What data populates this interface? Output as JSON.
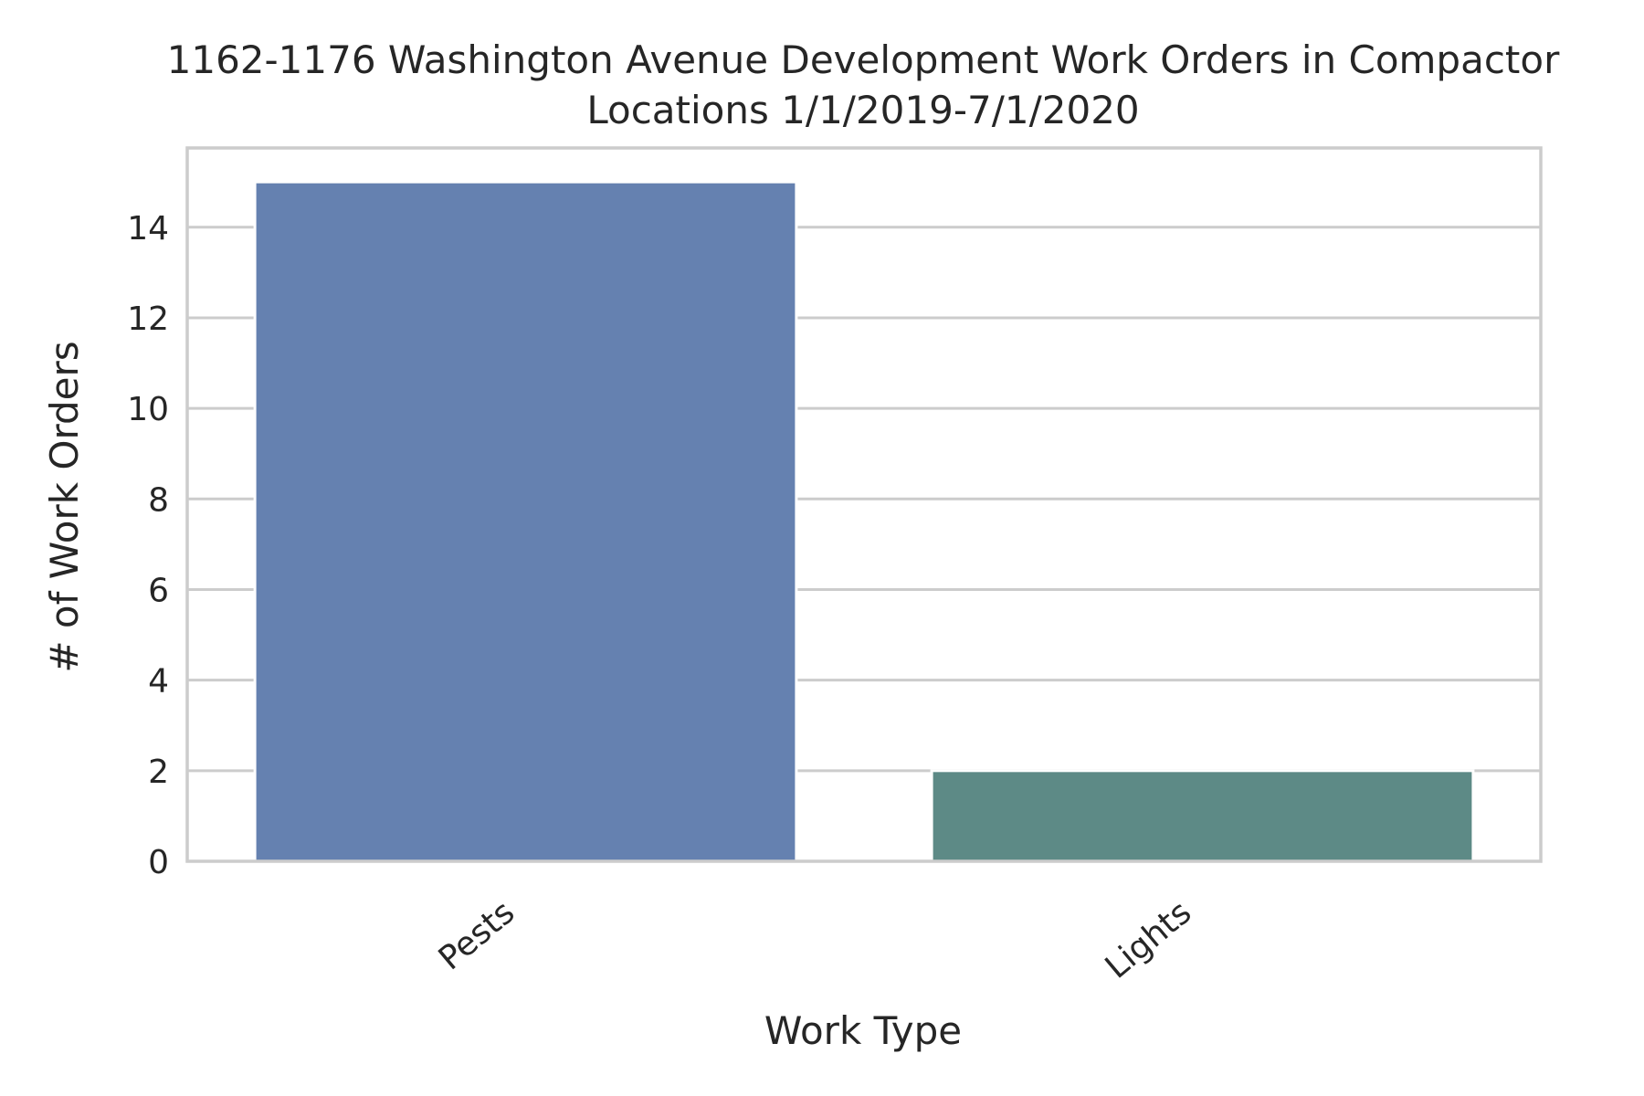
{
  "chart_data": {
    "type": "bar",
    "title_line1": "1162-1176 Washington Avenue Development Work Orders in Compactor",
    "title_line2": "Locations 1/1/2019-7/1/2020",
    "xlabel": "Work Type",
    "ylabel": "# of Work Orders",
    "categories": [
      "Pests",
      "Lights"
    ],
    "values": [
      15,
      2
    ],
    "colors": [
      "#6581b0",
      "#5d8a86"
    ],
    "ylim": [
      0,
      15.75
    ],
    "yticks": [
      0,
      2,
      4,
      6,
      8,
      10,
      12,
      14
    ],
    "grid": true
  }
}
